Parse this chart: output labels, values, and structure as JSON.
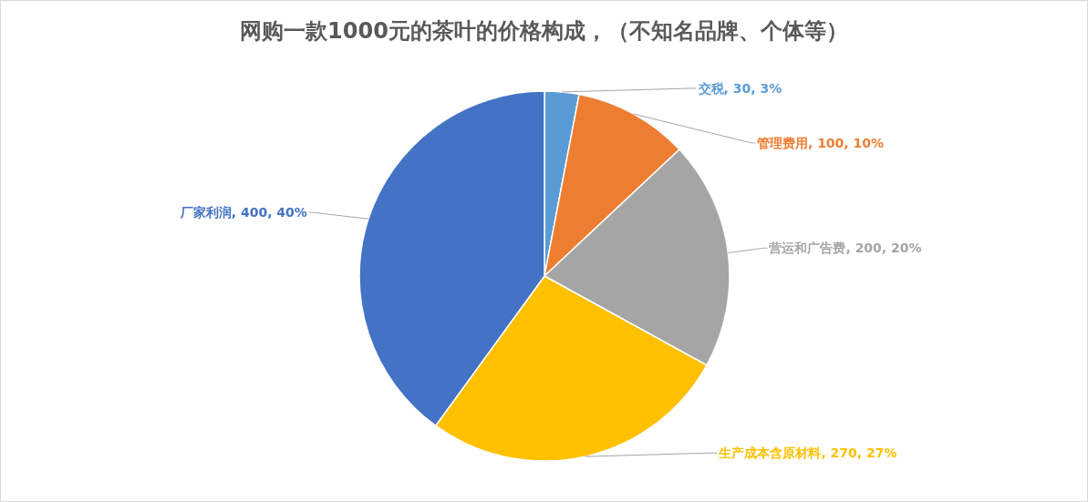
{
  "chart_data": {
    "type": "pie",
    "title": "网购一款1000元的茶叶的价格构成，（不知名品牌、个体等）",
    "categories": [
      "交税",
      "管理费用",
      "营运和广告费",
      "生产成本含原材料",
      "厂家利润"
    ],
    "values": [
      30,
      100,
      200,
      270,
      400
    ],
    "colors": [
      "#5b9bd5",
      "#ed7d31",
      "#a5a5a5",
      "#ffc000",
      "#4472c4"
    ],
    "value_labels": [
      "30, 3%",
      "100, 10%",
      "200, 20%",
      "270, 27%",
      "400, 40%"
    ],
    "legend": false
  }
}
